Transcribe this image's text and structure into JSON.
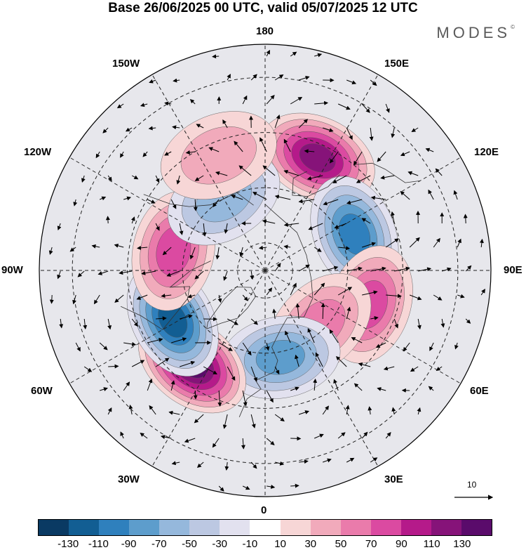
{
  "header": {
    "title": "Base 26/06/2025 00 UTC, valid 05/07/2025 12 UTC",
    "brand": "MODES"
  },
  "map": {
    "projection": "north-polar-stereographic",
    "longitude_labels": {
      "top": "180",
      "bottom": "0",
      "left": "90W",
      "right": "90E",
      "upper_left_1": "150W",
      "upper_left_2": "120W",
      "lower_left_1": "60W",
      "lower_left_2": "30W",
      "upper_right_1": "150E",
      "upper_right_2": "120E",
      "lower_right_1": "60E",
      "lower_right_2": "30E"
    },
    "reference_vector": "10",
    "anomaly_centers": [
      {
        "name": "positive-north-pacific",
        "lon": 155,
        "lat": 45,
        "peak": 110
      },
      {
        "name": "negative-east-siberia",
        "lon": 112,
        "lat": 55,
        "peak": -90
      },
      {
        "name": "positive-west-siberia",
        "lon": 72,
        "lat": 50,
        "peak": 70
      },
      {
        "name": "positive-ural",
        "lon": 45,
        "lat": 62,
        "peak": 50
      },
      {
        "name": "negative-europe",
        "lon": 10,
        "lat": 58,
        "peak": -70
      },
      {
        "name": "positive-north-atlantic",
        "lon": -38,
        "lat": 47,
        "peak": 130
      },
      {
        "name": "negative-hudson",
        "lon": -62,
        "lat": 52,
        "peak": -110
      },
      {
        "name": "positive-canada",
        "lon": -102,
        "lat": 56,
        "peak": 70
      },
      {
        "name": "negative-alaska",
        "lon": -150,
        "lat": 60,
        "peak": -50
      },
      {
        "name": "positive-bering",
        "lon": -158,
        "lat": 45,
        "peak": 30
      }
    ]
  },
  "colorbar": {
    "ticks": [
      "-130",
      "-110",
      "-90",
      "-70",
      "-50",
      "-30",
      "-10",
      "10",
      "30",
      "50",
      "70",
      "90",
      "110",
      "130"
    ],
    "colors": [
      "#0a3a63",
      "#125e93",
      "#2f80bd",
      "#5d9dcc",
      "#95b8dc",
      "#bcc8e2",
      "#e2e1ef",
      "#ffffff",
      "#f7d6d6",
      "#f1aabb",
      "#ea7bab",
      "#db4aa1",
      "#b51a8a",
      "#861379",
      "#5a0b6b"
    ]
  }
}
